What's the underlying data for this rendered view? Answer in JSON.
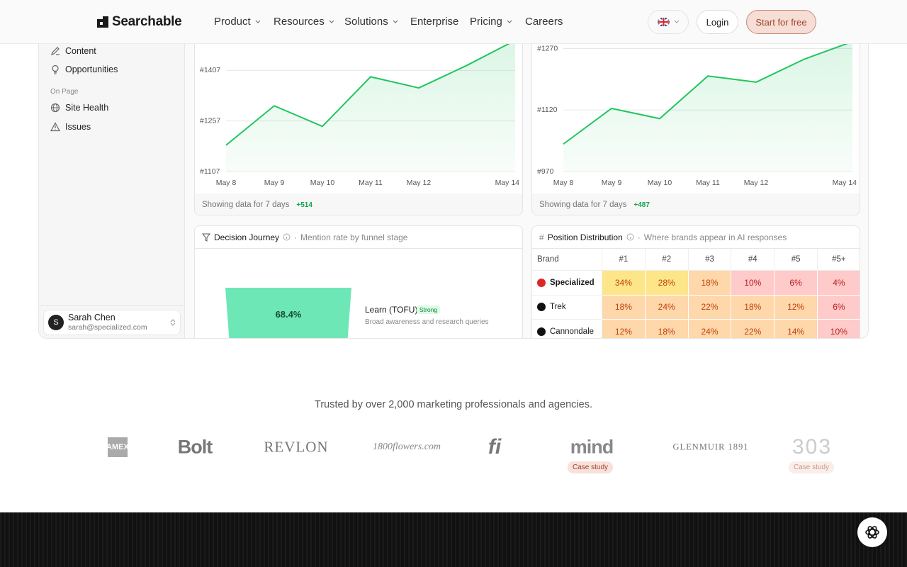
{
  "nav": {
    "brand": "Searchable",
    "items": [
      "Product",
      "Resources",
      "Solutions",
      "Enterprise",
      "Pricing",
      "Careers"
    ],
    "login": "Login",
    "cta": "Start for free"
  },
  "sidebar": {
    "items": [
      "Content",
      "Opportunities"
    ],
    "section": "On Page",
    "section_items": [
      "Site Health",
      "Issues"
    ],
    "user": {
      "avatar": "S",
      "name": "Sarah Chen",
      "email": "sarah@specialized.com"
    }
  },
  "charts": [
    {
      "type": "line",
      "categories": [
        "May 8",
        "May 9",
        "May 10",
        "May 11",
        "May 12",
        null,
        "May 14"
      ],
      "values": [
        1185,
        1302,
        1241,
        1388,
        1355,
        1422,
        1496
      ],
      "color": "#22c55e",
      "grid": true,
      "ylim": [
        1107,
        1557
      ],
      "yticks": [
        {
          "value": 1107,
          "label": "#1107"
        },
        {
          "value": 1257,
          "label": "#1257"
        },
        {
          "value": 1407,
          "label": "#1407"
        }
      ],
      "footer": "Showing data for 7 days",
      "change": "+514"
    },
    {
      "type": "line",
      "categories": [
        "May 8",
        "May 9",
        "May 10",
        "May 11",
        "May 12",
        null,
        "May 14"
      ],
      "values": [
        1037,
        1124,
        1099,
        1203,
        1188,
        1244,
        1287
      ],
      "color": "#22c55e",
      "grid": true,
      "ylim": [
        970,
        1340
      ],
      "yticks": [
        {
          "value": 970,
          "label": "#970"
        },
        {
          "value": 1120,
          "label": "#1120"
        },
        {
          "value": 1270,
          "label": "#1270"
        }
      ],
      "footer": "Showing data for 7 days",
      "change": "+487"
    }
  ],
  "decision_journey": {
    "title": "Decision Journey",
    "subtitle": "Mention rate by funnel stage",
    "stage": {
      "value": "68.4%",
      "name": "Learn (TOFU)",
      "badge": "Strong",
      "description": "Broad awareness and research queries"
    }
  },
  "position_distribution": {
    "title": "Position Distribution",
    "subtitle": "Where brands appear in AI responses",
    "columns": [
      "Brand",
      "#1",
      "#2",
      "#3",
      "#4",
      "#5",
      "#5+"
    ],
    "rows": [
      {
        "brand": "Specialized",
        "cells": [
          {
            "value": 34,
            "label": "34%"
          },
          {
            "value": 28,
            "label": "28%"
          },
          {
            "value": 18,
            "label": "18%"
          },
          {
            "value": 10,
            "label": "10%"
          },
          {
            "value": 6,
            "label": "6%"
          },
          {
            "value": 4,
            "label": "4%"
          }
        ]
      },
      {
        "brand": "Trek",
        "cells": [
          {
            "value": 18,
            "label": "18%"
          },
          {
            "value": 24,
            "label": "24%"
          },
          {
            "value": 22,
            "label": "22%"
          },
          {
            "value": 18,
            "label": "18%"
          },
          {
            "value": 12,
            "label": "12%"
          },
          {
            "value": 6,
            "label": "6%"
          }
        ]
      },
      {
        "brand": "Cannondale",
        "cells": [
          {
            "value": 12,
            "label": "12%"
          },
          {
            "value": 18,
            "label": "18%"
          },
          {
            "value": 24,
            "label": "24%"
          },
          {
            "value": 22,
            "label": "22%"
          },
          {
            "value": 14,
            "label": "14%"
          },
          {
            "value": 10,
            "label": "10%"
          }
        ]
      }
    ]
  },
  "trusted": {
    "text": "Trusted by over 2,000 marketing professionals and agencies.",
    "logos": [
      {
        "name": "AMEX"
      },
      {
        "name": "Bolt"
      },
      {
        "name": "REVLON"
      },
      {
        "name": "1800flowers.com"
      },
      {
        "name": "fi"
      },
      {
        "name": "mind",
        "badge": "Case study"
      },
      {
        "name": "GLENMUIR 1891"
      },
      {
        "name": "303",
        "badge": "Case study"
      }
    ]
  }
}
